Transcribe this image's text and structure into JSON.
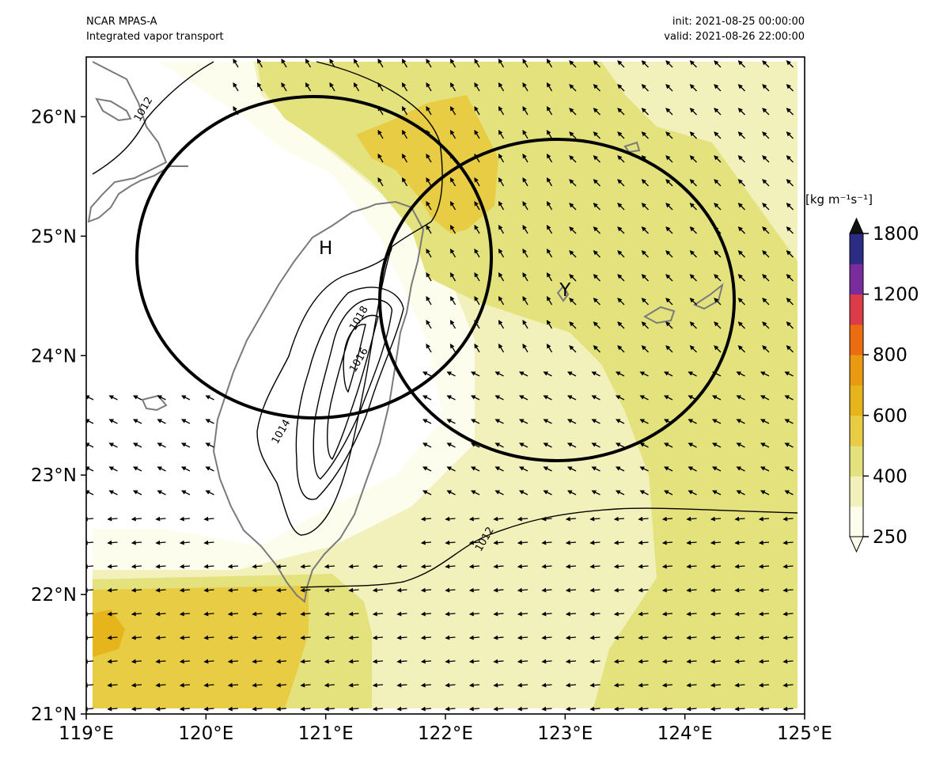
{
  "header": {
    "left_line1": "NCAR MPAS-A",
    "left_line2": "Integrated vapor transport",
    "right_line1": "init: 2021-08-25 00:00:00",
    "right_line2": "valid: 2021-08-26 22:00:00"
  },
  "map": {
    "lon_range": [
      119,
      125
    ],
    "lat_range": [
      21,
      26.5
    ],
    "lon_ticks": [
      "119°E",
      "120°E",
      "121°E",
      "122°E",
      "123°E",
      "124°E",
      "125°E"
    ],
    "lat_ticks": [
      "21°N",
      "22°N",
      "23°N",
      "24°N",
      "25°N",
      "26°N"
    ],
    "pressure_labels": [
      {
        "text": "1012",
        "lon": 119.5,
        "lat": 26.05
      },
      {
        "text": "1018",
        "lon": 121.3,
        "lat": 24.3
      },
      {
        "text": "1016",
        "lon": 121.3,
        "lat": 23.95
      },
      {
        "text": "1014",
        "lon": 120.65,
        "lat": 23.35
      },
      {
        "text": "1012",
        "lon": 122.35,
        "lat": 22.45
      }
    ],
    "markers": [
      {
        "text": "H",
        "lon": 121.0,
        "lat": 24.85
      },
      {
        "text": "Y",
        "lon": 123.0,
        "lat": 24.5
      }
    ]
  },
  "colorbar": {
    "unit": "[kg m⁻¹s⁻¹]",
    "tick_labels": [
      "250",
      "400",
      "600",
      "800",
      "1200",
      "1800"
    ],
    "colors": [
      "#fdfdee",
      "#f2f0bb",
      "#e4e27c",
      "#e8cc44",
      "#e6b51c",
      "#ea9a10",
      "#ec6c10",
      "#dc3c48",
      "#7a2c9c",
      "#2c2c84"
    ]
  }
}
